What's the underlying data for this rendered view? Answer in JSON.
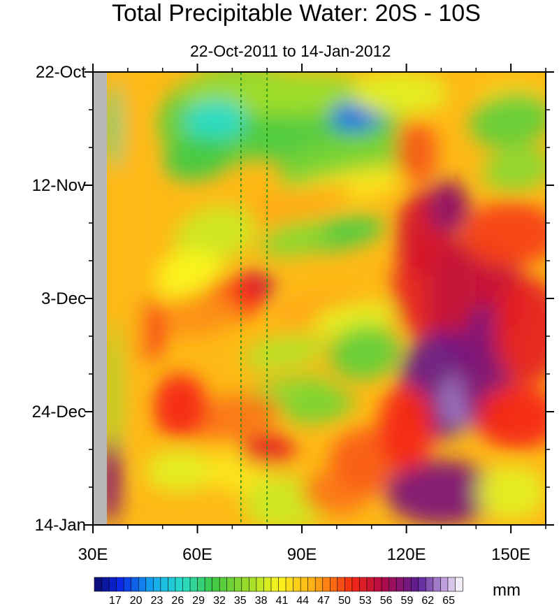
{
  "chart_data": {
    "type": "heatmap",
    "title": "Total Precipitable Water: 20S - 10S",
    "subtitle": "22-Oct-2011 to 14-Jan-2012",
    "x_ticks": [
      {
        "value": 30,
        "label": "30E"
      },
      {
        "value": 60,
        "label": "60E"
      },
      {
        "value": 90,
        "label": "90E"
      },
      {
        "value": 120,
        "label": "120E"
      },
      {
        "value": 150,
        "label": "150E"
      }
    ],
    "xlim": [
      30,
      160
    ],
    "y_ticks": [
      {
        "label": "22-Oct",
        "day": 0
      },
      {
        "label": "12-Nov",
        "day": 21
      },
      {
        "label": "3-Dec",
        "day": 42
      },
      {
        "label": "24-Dec",
        "day": 63
      },
      {
        "label": "14-Jan",
        "day": 84
      }
    ],
    "ylim_days": [
      0,
      84
    ],
    "reference_lines_lon": [
      72.5,
      80
    ],
    "colorbar": {
      "units": "mm",
      "min": 14,
      "max": 67,
      "labels": [
        17,
        20,
        23,
        26,
        29,
        32,
        35,
        38,
        41,
        44,
        47,
        50,
        53,
        56,
        59,
        62,
        65
      ]
    },
    "colors": {
      "missing": "#b8b8b8",
      "reference_line": "#1a8a1a"
    }
  }
}
